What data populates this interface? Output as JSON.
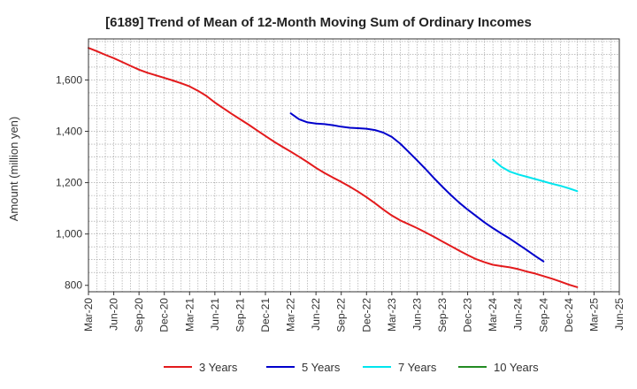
{
  "chart_data": {
    "type": "line",
    "title": "[6189]  Trend of Mean of 12-Month Moving Sum of Ordinary Incomes",
    "ylabel": "Amount (million yen)",
    "xlabel": "",
    "ylim": [
      775,
      1760
    ],
    "yticks": [
      800,
      1000,
      1200,
      1400,
      1600
    ],
    "ytick_labels": [
      "800",
      "1,000",
      "1,200",
      "1,400",
      "1,600"
    ],
    "x_tick_labels": [
      "Mar-20",
      "Jun-20",
      "Sep-20",
      "Dec-20",
      "Mar-21",
      "Jun-21",
      "Sep-21",
      "Dec-21",
      "Mar-22",
      "Jun-22",
      "Sep-22",
      "Dec-22",
      "Mar-23",
      "Jun-23",
      "Sep-23",
      "Dec-23",
      "Mar-24",
      "Jun-24",
      "Sep-24",
      "Dec-24",
      "Mar-25",
      "Jun-25"
    ],
    "x_index_range": [
      0,
      63
    ],
    "grid": true,
    "series": [
      {
        "name": "3 Years",
        "color": "#e31a1c",
        "start_index": 0,
        "values": [
          1725,
          1712,
          1698,
          1685,
          1670,
          1655,
          1640,
          1628,
          1618,
          1608,
          1598,
          1587,
          1575,
          1558,
          1538,
          1512,
          1490,
          1468,
          1447,
          1426,
          1404,
          1382,
          1360,
          1340,
          1321,
          1301,
          1280,
          1258,
          1238,
          1220,
          1203,
          1185,
          1165,
          1143,
          1120,
          1095,
          1072,
          1053,
          1038,
          1023,
          1006,
          989,
          971,
          953,
          935,
          918,
          902,
          890,
          880,
          875,
          870,
          863,
          854,
          846,
          836,
          826,
          815,
          803,
          793
        ]
      },
      {
        "name": "5 Years",
        "color": "#0000cc",
        "start_index": 24,
        "values": [
          1470,
          1447,
          1435,
          1430,
          1428,
          1424,
          1418,
          1414,
          1412,
          1410,
          1405,
          1395,
          1378,
          1352,
          1320,
          1287,
          1253,
          1218,
          1184,
          1152,
          1122,
          1095,
          1070,
          1045,
          1023,
          1002,
          982,
          960,
          938,
          915,
          893
        ]
      },
      {
        "name": "7 Years",
        "color": "#00e5ee",
        "start_index": 48,
        "values": [
          1290,
          1262,
          1243,
          1232,
          1223,
          1214,
          1205,
          1196,
          1188,
          1178,
          1167
        ]
      },
      {
        "name": "10 Years",
        "color": "#228b22",
        "start_index": 0,
        "values": []
      }
    ]
  }
}
